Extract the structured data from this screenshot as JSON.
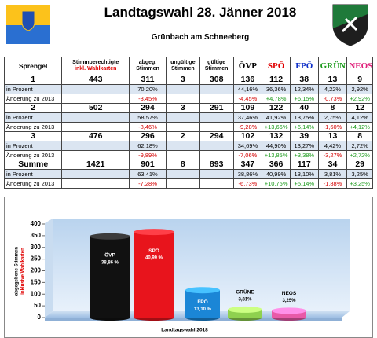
{
  "header": {
    "title": "Landtagswahl 28. Jänner 2018",
    "subtitle": "Grünbach am Schneeberg"
  },
  "table": {
    "columns": [
      [
        "Sprengel"
      ],
      [
        "Stimmberechtigte",
        "inkl. Wahlkarten"
      ],
      [
        "abgeg.",
        "Stimmen"
      ],
      [
        "ungültige",
        "Stimmen"
      ],
      [
        "gültige",
        "Stimmen"
      ],
      [
        "ÖVP"
      ],
      [
        "SPÖ"
      ],
      [
        "FPÖ"
      ],
      [
        "GRÜNE"
      ],
      [
        "NEOS"
      ]
    ],
    "rows": [
      [
        "1",
        "443",
        "311",
        "3",
        "308",
        "136",
        "112",
        "38",
        "13",
        "9"
      ],
      [
        "in Prozent",
        null,
        "70,20%",
        null,
        null,
        "44,16%",
        "36,36%",
        "12,34%",
        "4,22%",
        "2,92%"
      ],
      [
        "Änderung zu 2013",
        null,
        "-3,45%",
        null,
        null,
        "-4,45%",
        "+4,78%",
        "+6,15%",
        "-0,73%",
        "+2,92%"
      ],
      [
        "2",
        "502",
        "294",
        "3",
        "291",
        "109",
        "122",
        "40",
        "8",
        "12"
      ],
      [
        "in Prozent",
        null,
        "58,57%",
        null,
        null,
        "37,46%",
        "41,92%",
        "13,75%",
        "2,75%",
        "4,12%"
      ],
      [
        "Änderung zu 2013",
        null,
        "-8,46%",
        null,
        null,
        "-9,28%",
        "+13,66%",
        "+6,14%",
        "-1,60%",
        "+4,12%"
      ],
      [
        "3",
        "476",
        "296",
        "2",
        "294",
        "102",
        "132",
        "39",
        "13",
        "8"
      ],
      [
        "in Prozent",
        null,
        "62,18%",
        null,
        null,
        "34,69%",
        "44,90%",
        "13,27%",
        "4,42%",
        "2,72%"
      ],
      [
        "Änderung zu 2013",
        null,
        "-9,89%",
        null,
        null,
        "-7,06%",
        "+13,85%",
        "+3,38%",
        "-3,27%",
        "+2,72%"
      ],
      [
        "Summe",
        "1421",
        "901",
        "8",
        "893",
        "347",
        "366",
        "117",
        "34",
        "29"
      ],
      [
        "in Prozent",
        null,
        "63,41%",
        null,
        null,
        "38,86%",
        "40,99%",
        "13,10%",
        "3,81%",
        "3,25%"
      ],
      [
        "Änderung zu 2013",
        null,
        "-7,28%",
        null,
        null,
        "-6,73%",
        "+10,75%",
        "+5,14%",
        "-1,88%",
        "+3,25%"
      ]
    ]
  },
  "chart_data": {
    "type": "bar",
    "categories": [
      "ÖVP",
      "SPÖ",
      "FPÖ",
      "GRÜNE",
      "NEOS"
    ],
    "values": [
      347,
      366,
      117,
      34,
      29
    ],
    "annotations": [
      "38,86 %",
      "40,99 %",
      "13,10 %",
      "3,81%",
      "3,25%"
    ],
    "colors": [
      "#111111",
      "#e8141c",
      "#1b86d6",
      "#8fd14f",
      "#e85aa8"
    ],
    "ylim": [
      0,
      400
    ],
    "yticks": [
      0,
      50,
      100,
      150,
      200,
      250,
      300,
      350,
      400
    ],
    "ylabel": "abgegebene Stimmen",
    "ylabel2": "inklusive Wahlkarten",
    "xlabel": "Landtagswahl 2018",
    "grid": false
  }
}
